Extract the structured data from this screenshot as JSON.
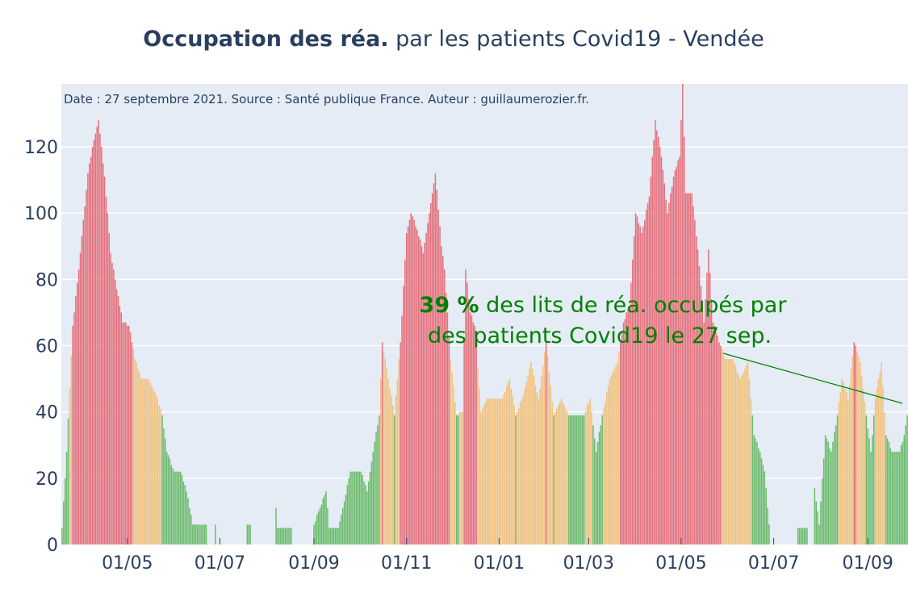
{
  "title": {
    "bold": "Occupation des réa.",
    "rest": " par les patients Covid19 - Vendée"
  },
  "note": "Date : 27 septembre 2021. Source : Santé publique France. Auteur : guillaumerozier.fr.",
  "annotation": {
    "value": "39",
    "unit": " %",
    "line1_rest": " des lits de réa. occupés par",
    "line2": "des patients Covid19 le 27 sep."
  },
  "colors": {
    "high": "#e5707b",
    "medium": "#f1c27d",
    "low": "#6dbb6d",
    "plot_bg": "#e5ecf6",
    "grid": "#ffffff",
    "annotation": "#008000",
    "text": "#2a3f5f"
  },
  "chart_data": {
    "type": "bar",
    "x_start": "2020-03-19",
    "x_end": "2021-09-27",
    "ylim": [
      0,
      139
    ],
    "yticks": [
      0,
      20,
      40,
      60,
      80,
      100,
      120
    ],
    "xticks": [
      {
        "date": "2020-05-01",
        "label": "01/05"
      },
      {
        "date": "2020-07-01",
        "label": "01/07"
      },
      {
        "date": "2020-09-01",
        "label": "01/09"
      },
      {
        "date": "2020-11-01",
        "label": "01/11"
      },
      {
        "date": "2021-01-01",
        "label": "01/01"
      },
      {
        "date": "2021-03-01",
        "label": "01/03"
      },
      {
        "date": "2021-05-01",
        "label": "01/05"
      },
      {
        "date": "2021-07-01",
        "label": "01/07"
      },
      {
        "date": "2021-09-01",
        "label": "01/09"
      }
    ],
    "thresholds": {
      "medium": 40,
      "high": 60
    },
    "series_keypoints": [
      [
        "2020-03-19",
        5
      ],
      [
        "2020-03-22",
        28
      ],
      [
        "2020-03-26",
        66
      ],
      [
        "2020-03-30",
        83
      ],
      [
        "2020-04-05",
        112
      ],
      [
        "2020-04-09",
        122
      ],
      [
        "2020-04-12",
        128
      ],
      [
        "2020-04-16",
        111
      ],
      [
        "2020-04-20",
        88
      ],
      [
        "2020-04-24",
        77
      ],
      [
        "2020-04-28",
        67
      ],
      [
        "2020-05-02",
        66
      ],
      [
        "2020-05-06",
        56
      ],
      [
        "2020-05-10",
        50
      ],
      [
        "2020-05-15",
        50
      ],
      [
        "2020-05-20",
        45
      ],
      [
        "2020-05-24",
        39
      ],
      [
        "2020-05-27",
        28
      ],
      [
        "2020-06-01",
        22
      ],
      [
        "2020-06-05",
        22
      ],
      [
        "2020-06-09",
        16
      ],
      [
        "2020-06-13",
        6
      ],
      [
        "2020-06-18",
        6
      ],
      [
        "2020-06-22",
        6
      ],
      [
        "2020-06-23",
        0
      ],
      [
        "2020-06-28",
        6
      ],
      [
        "2020-06-29",
        0
      ],
      [
        "2020-07-18",
        0
      ],
      [
        "2020-07-19",
        6
      ],
      [
        "2020-07-21",
        6
      ],
      [
        "2020-07-22",
        0
      ],
      [
        "2020-08-06",
        0
      ],
      [
        "2020-08-07",
        11
      ],
      [
        "2020-08-08",
        5
      ],
      [
        "2020-08-17",
        5
      ],
      [
        "2020-08-18",
        0
      ],
      [
        "2020-08-31",
        0
      ],
      [
        "2020-09-01",
        6
      ],
      [
        "2020-09-05",
        11
      ],
      [
        "2020-09-09",
        16
      ],
      [
        "2020-09-11",
        5
      ],
      [
        "2020-09-17",
        5
      ],
      [
        "2020-09-20",
        11
      ],
      [
        "2020-09-25",
        22
      ],
      [
        "2020-10-02",
        22
      ],
      [
        "2020-10-06",
        16
      ],
      [
        "2020-10-10",
        28
      ],
      [
        "2020-10-14",
        39
      ],
      [
        "2020-10-16",
        61
      ],
      [
        "2020-10-20",
        50
      ],
      [
        "2020-10-24",
        39
      ],
      [
        "2020-10-28",
        61
      ],
      [
        "2020-11-01",
        94
      ],
      [
        "2020-11-04",
        100
      ],
      [
        "2020-11-08",
        95
      ],
      [
        "2020-11-12",
        88
      ],
      [
        "2020-11-16",
        100
      ],
      [
        "2020-11-20",
        112
      ],
      [
        "2020-11-24",
        90
      ],
      [
        "2020-11-26",
        83
      ],
      [
        "2020-11-30",
        56
      ],
      [
        "2020-12-04",
        39
      ],
      [
        "2020-12-08",
        40
      ],
      [
        "2020-12-10",
        83
      ],
      [
        "2020-12-13",
        70
      ],
      [
        "2020-12-16",
        66
      ],
      [
        "2020-12-20",
        40
      ],
      [
        "2020-12-24",
        44
      ],
      [
        "2020-12-28",
        44
      ],
      [
        "2021-01-03",
        44
      ],
      [
        "2021-01-08",
        50
      ],
      [
        "2021-01-12",
        39
      ],
      [
        "2021-01-17",
        45
      ],
      [
        "2021-01-22",
        55
      ],
      [
        "2021-01-27",
        44
      ],
      [
        "2021-02-01",
        61
      ],
      [
        "2021-02-06",
        39
      ],
      [
        "2021-02-11",
        44
      ],
      [
        "2021-02-16",
        39
      ],
      [
        "2021-02-21",
        39
      ],
      [
        "2021-02-26",
        39
      ],
      [
        "2021-03-02",
        44
      ],
      [
        "2021-03-06",
        28
      ],
      [
        "2021-03-10",
        39
      ],
      [
        "2021-03-15",
        50
      ],
      [
        "2021-03-20",
        55
      ],
      [
        "2021-03-24",
        67
      ],
      [
        "2021-03-28",
        72
      ],
      [
        "2021-04-01",
        100
      ],
      [
        "2021-04-05",
        94
      ],
      [
        "2021-04-10",
        105
      ],
      [
        "2021-04-14",
        128
      ],
      [
        "2021-04-18",
        117
      ],
      [
        "2021-04-22",
        100
      ],
      [
        "2021-04-26",
        111
      ],
      [
        "2021-04-30",
        117
      ],
      [
        "2021-05-02",
        139
      ],
      [
        "2021-05-04",
        106
      ],
      [
        "2021-05-08",
        106
      ],
      [
        "2021-05-12",
        89
      ],
      [
        "2021-05-16",
        67
      ],
      [
        "2021-05-19",
        89
      ],
      [
        "2021-05-22",
        67
      ],
      [
        "2021-05-26",
        61
      ],
      [
        "2021-05-30",
        56
      ],
      [
        "2021-06-04",
        56
      ],
      [
        "2021-06-09",
        50
      ],
      [
        "2021-06-14",
        55
      ],
      [
        "2021-06-18",
        33
      ],
      [
        "2021-06-22",
        28
      ],
      [
        "2021-06-25",
        22
      ],
      [
        "2021-06-28",
        6
      ],
      [
        "2021-06-29",
        0
      ],
      [
        "2021-07-16",
        0
      ],
      [
        "2021-07-17",
        5
      ],
      [
        "2021-07-23",
        5
      ],
      [
        "2021-07-24",
        0
      ],
      [
        "2021-07-27",
        0
      ],
      [
        "2021-07-28",
        17
      ],
      [
        "2021-07-31",
        6
      ],
      [
        "2021-08-04",
        33
      ],
      [
        "2021-08-08",
        28
      ],
      [
        "2021-08-12",
        39
      ],
      [
        "2021-08-15",
        50
      ],
      [
        "2021-08-19",
        44
      ],
      [
        "2021-08-23",
        61
      ],
      [
        "2021-08-27",
        55
      ],
      [
        "2021-08-31",
        39
      ],
      [
        "2021-09-03",
        28
      ],
      [
        "2021-09-06",
        44
      ],
      [
        "2021-09-10",
        55
      ],
      [
        "2021-09-13",
        33
      ],
      [
        "2021-09-17",
        28
      ],
      [
        "2021-09-22",
        28
      ],
      [
        "2021-09-25",
        33
      ],
      [
        "2021-09-27",
        39
      ]
    ]
  }
}
